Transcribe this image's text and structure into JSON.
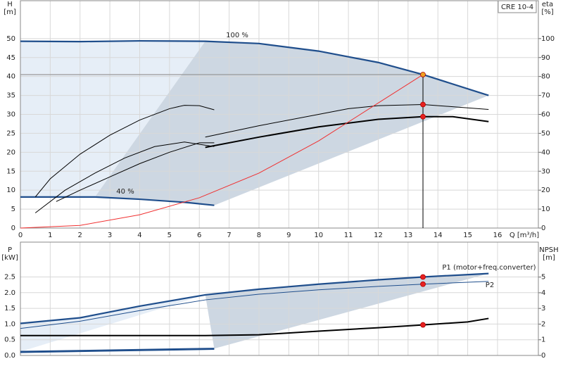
{
  "chart_data": [
    {
      "type": "line",
      "ylabel": "H",
      "yunit": "[m]",
      "y2label": "eta",
      "y2unit": "[%]",
      "model": "CRE 10-4",
      "xlabel": "Q [m³/h]",
      "xlim": [
        0,
        17.37
      ],
      "xticks": [
        0,
        1,
        2,
        3,
        4,
        5,
        6,
        7,
        8,
        9,
        10,
        11,
        12,
        13,
        14,
        15,
        16
      ],
      "show_xtick_labels": true,
      "ylim": [
        0,
        60
      ],
      "yticks": [
        0,
        5,
        10,
        15,
        20,
        25,
        30,
        35,
        40,
        45,
        50
      ],
      "y2lim": [
        0,
        120
      ],
      "y2ticks": [
        0,
        10,
        20,
        30,
        40,
        50,
        60,
        70,
        80,
        90,
        100
      ],
      "grid": true,
      "series": [
        {
          "name": "100 %",
          "color": "#1f4e8c",
          "style": "thick",
          "x": [
            0,
            2,
            4,
            6.2,
            8,
            10,
            12,
            13.5,
            15.7
          ],
          "values": [
            49.3,
            49.2,
            49.4,
            49.3,
            48.7,
            46.7,
            43.7,
            40.5,
            35
          ]
        },
        {
          "name": "40 %",
          "color": "#1f4e8c",
          "style": "thick",
          "x": [
            0,
            2.5,
            4,
            5.5,
            6.5
          ],
          "values": [
            8.2,
            8.2,
            7.6,
            6.8,
            6
          ]
        },
        {
          "color": "#000000",
          "style": "thick",
          "axis": "y2",
          "x": [
            6.2,
            8,
            10,
            12,
            13.5,
            14.5,
            15.7
          ],
          "values": [
            42.6,
            48,
            53.4,
            57.4,
            58.8,
            58.8,
            56.2
          ]
        },
        {
          "color": "#000000",
          "style": "thin",
          "axis": "y2",
          "x": [
            6.2,
            8,
            10,
            11,
            12,
            13.5,
            15.7
          ],
          "values": [
            48,
            54,
            60,
            63,
            64.6,
            65.2,
            62.6
          ]
        },
        {
          "color": "#000000",
          "style": "thin",
          "axis": "y2",
          "x": [
            0.5,
            1,
            2,
            3,
            4,
            5,
            5.5,
            6,
            6.5
          ],
          "values": [
            16.4,
            26,
            39,
            49,
            57,
            63,
            64.8,
            64.6,
            62.4
          ]
        },
        {
          "color": "#000000",
          "style": "thin",
          "axis": "y2",
          "x": [
            0.5,
            1.5,
            2.5,
            3.5,
            4.5,
            5.5,
            6.5
          ],
          "values": [
            8,
            20,
            29,
            37,
            43,
            45.4,
            43
          ]
        },
        {
          "color": "#000000",
          "style": "thin",
          "axis": "y2",
          "x": [
            1.2,
            2,
            3,
            4,
            5,
            6,
            6.5
          ],
          "values": [
            14,
            20,
            27,
            34,
            40,
            45,
            45
          ]
        },
        {
          "color": "#f03030",
          "style": "thin",
          "x": [
            0,
            2,
            4,
            6,
            8,
            10,
            12,
            13.5
          ],
          "values": [
            0,
            0.7,
            3.5,
            8,
            14.5,
            23,
            33,
            40.5
          ]
        },
        {
          "color": "#f0a020",
          "style": "point",
          "x": [
            13.5
          ],
          "values": [
            40.5
          ]
        },
        {
          "color": "#e82020",
          "style": "point",
          "axis": "y2",
          "x": [
            13.5
          ],
          "values": [
            65.2
          ]
        },
        {
          "color": "#e82020",
          "style": "point",
          "axis": "y2",
          "x": [
            13.5
          ],
          "values": [
            58.8
          ]
        }
      ]
    },
    {
      "type": "line",
      "ylabel": "P",
      "yunit": "[kW]",
      "y2label": "NPSH",
      "y2unit": "[m]",
      "xlim": [
        0,
        17.37
      ],
      "xticks": [
        0,
        1,
        2,
        3,
        4,
        5,
        6,
        7,
        8,
        9,
        10,
        11,
        12,
        13,
        14,
        15,
        16
      ],
      "show_xtick_labels": false,
      "ylim": [
        0,
        3.61
      ],
      "yticks": [
        {
          "value": 0,
          "label": "0.0"
        },
        {
          "value": 0.5,
          "label": "0.5"
        },
        {
          "value": 1,
          "label": "1.0"
        },
        {
          "value": 1.5,
          "label": "1.5"
        },
        {
          "value": 2,
          "label": "2.0"
        },
        {
          "value": 2.5,
          "label": "2.5"
        }
      ],
      "y2lim": [
        0,
        7.23
      ],
      "y2ticks": [
        0,
        1,
        2,
        3,
        4,
        5
      ],
      "grid": true,
      "series": [
        {
          "name": "P1 (motor+freq.converter)",
          "color": "#1f4e8c",
          "style": "thick",
          "x": [
            0,
            2,
            4,
            6.2,
            8,
            10,
            12,
            13.5,
            15.7
          ],
          "values": [
            1.02,
            1.2,
            1.57,
            1.93,
            2.11,
            2.27,
            2.41,
            2.5,
            2.61
          ]
        },
        {
          "name": "P2",
          "color": "#1f4e8c",
          "style": "thin",
          "x": [
            0,
            2,
            4,
            6.2,
            8,
            10,
            12,
            13.5,
            15.7
          ],
          "values": [
            0.86,
            1.09,
            1.43,
            1.77,
            1.95,
            2.09,
            2.2,
            2.27,
            2.36
          ]
        },
        {
          "color": "#1f4e8c",
          "style": "thick",
          "x": [
            0,
            6.5
          ],
          "values": [
            0.12,
            0.22
          ]
        },
        {
          "color": "#1f4e8c",
          "style": "thin",
          "x": [
            0,
            6.5
          ],
          "values": [
            0.09,
            0.19
          ]
        },
        {
          "color": "#000000",
          "style": "thick",
          "axis": "y2",
          "x": [
            0,
            6.2,
            8,
            10,
            12,
            13.5,
            15,
            15.7
          ],
          "values": [
            1.27,
            1.27,
            1.32,
            1.55,
            1.77,
            1.95,
            2.14,
            2.36
          ]
        },
        {
          "color": "#e82020",
          "style": "point",
          "x": [
            13.5
          ],
          "values": [
            2.5
          ]
        },
        {
          "color": "#e82020",
          "style": "point",
          "x": [
            13.5
          ],
          "values": [
            2.27
          ]
        },
        {
          "color": "#e82020",
          "style": "point",
          "axis": "y2",
          "x": [
            13.5
          ],
          "values": [
            1.95
          ]
        }
      ]
    }
  ]
}
